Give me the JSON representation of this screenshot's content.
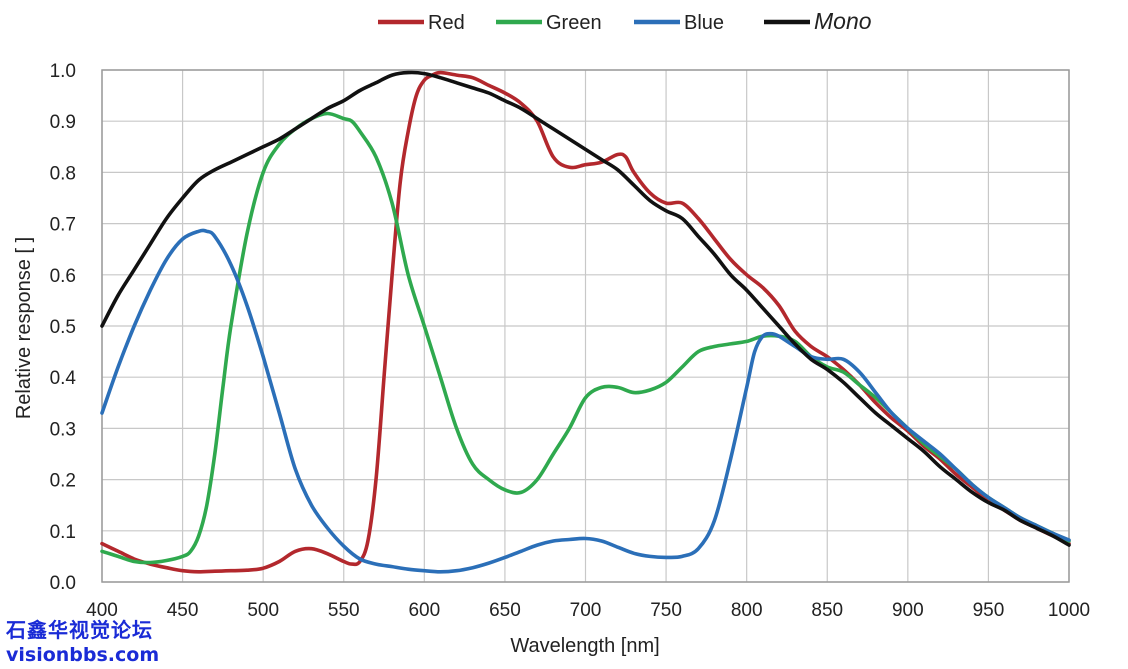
{
  "chart_data": {
    "type": "line",
    "xlabel": "Wavelength [nm]",
    "ylabel": "Relative response [ ]",
    "xlim": [
      400,
      1000
    ],
    "ylim": [
      0,
      1.0
    ],
    "xticks": [
      "400",
      "450",
      "500",
      "550",
      "600",
      "650",
      "700",
      "750",
      "800",
      "850",
      "900",
      "950",
      "1000"
    ],
    "yticks": [
      "0.0",
      "0.1",
      "0.2",
      "0.3",
      "0.4",
      "0.5",
      "0.6",
      "0.7",
      "0.8",
      "0.9",
      "1.0"
    ],
    "grid": true,
    "legend_position": "top",
    "series": [
      {
        "name": "Red",
        "color": "#b3282d",
        "italic": false,
        "x": [
          400,
          410,
          420,
          430,
          440,
          450,
          460,
          470,
          480,
          490,
          500,
          510,
          520,
          530,
          540,
          550,
          555,
          560,
          565,
          570,
          575,
          580,
          585,
          590,
          595,
          600,
          605,
          610,
          620,
          630,
          640,
          650,
          660,
          670,
          680,
          690,
          700,
          710,
          720,
          725,
          730,
          740,
          750,
          760,
          770,
          780,
          790,
          800,
          810,
          820,
          830,
          840,
          850,
          860,
          870,
          880,
          890,
          900,
          910,
          920,
          930,
          940,
          950,
          960,
          970,
          980,
          990,
          1000
        ],
        "y": [
          0.075,
          0.06,
          0.045,
          0.035,
          0.028,
          0.022,
          0.02,
          0.021,
          0.022,
          0.023,
          0.027,
          0.04,
          0.06,
          0.065,
          0.055,
          0.04,
          0.035,
          0.04,
          0.08,
          0.2,
          0.4,
          0.6,
          0.78,
          0.88,
          0.95,
          0.98,
          0.99,
          0.995,
          0.99,
          0.985,
          0.97,
          0.955,
          0.935,
          0.9,
          0.83,
          0.81,
          0.815,
          0.82,
          0.835,
          0.83,
          0.8,
          0.76,
          0.74,
          0.74,
          0.71,
          0.67,
          0.63,
          0.6,
          0.575,
          0.54,
          0.49,
          0.46,
          0.44,
          0.415,
          0.385,
          0.35,
          0.32,
          0.295,
          0.265,
          0.24,
          0.21,
          0.185,
          0.16,
          0.14,
          0.12,
          0.105,
          0.09,
          0.075
        ]
      },
      {
        "name": "Green",
        "color": "#2fa94e",
        "italic": false,
        "x": [
          400,
          410,
          420,
          430,
          440,
          450,
          455,
          460,
          465,
          470,
          475,
          480,
          490,
          500,
          510,
          520,
          530,
          540,
          550,
          555,
          560,
          570,
          580,
          590,
          600,
          610,
          620,
          630,
          640,
          650,
          660,
          670,
          680,
          690,
          700,
          710,
          720,
          730,
          740,
          750,
          760,
          770,
          780,
          790,
          800,
          810,
          820,
          830,
          840,
          850,
          860,
          870,
          880,
          890,
          900,
          910,
          920,
          930,
          940,
          950,
          960,
          970,
          980,
          990,
          1000
        ],
        "y": [
          0.06,
          0.05,
          0.04,
          0.038,
          0.042,
          0.05,
          0.06,
          0.09,
          0.15,
          0.25,
          0.38,
          0.5,
          0.68,
          0.8,
          0.855,
          0.885,
          0.905,
          0.915,
          0.905,
          0.9,
          0.88,
          0.83,
          0.74,
          0.6,
          0.5,
          0.4,
          0.3,
          0.23,
          0.2,
          0.18,
          0.175,
          0.2,
          0.25,
          0.3,
          0.36,
          0.38,
          0.38,
          0.37,
          0.375,
          0.39,
          0.42,
          0.45,
          0.46,
          0.465,
          0.47,
          0.48,
          0.48,
          0.47,
          0.44,
          0.42,
          0.41,
          0.385,
          0.36,
          0.33,
          0.3,
          0.27,
          0.245,
          0.22,
          0.19,
          0.165,
          0.145,
          0.125,
          0.11,
          0.095,
          0.08
        ]
      },
      {
        "name": "Blue",
        "color": "#2b6fb8",
        "italic": false,
        "x": [
          400,
          410,
          420,
          430,
          440,
          450,
          460,
          465,
          470,
          480,
          490,
          500,
          510,
          520,
          530,
          540,
          550,
          560,
          570,
          580,
          590,
          600,
          610,
          620,
          630,
          640,
          650,
          660,
          670,
          680,
          690,
          700,
          710,
          720,
          730,
          740,
          750,
          760,
          770,
          780,
          790,
          800,
          805,
          810,
          815,
          820,
          830,
          840,
          850,
          860,
          870,
          880,
          890,
          900,
          910,
          920,
          930,
          940,
          950,
          960,
          970,
          980,
          990,
          1000
        ],
        "y": [
          0.33,
          0.42,
          0.5,
          0.57,
          0.63,
          0.67,
          0.685,
          0.685,
          0.675,
          0.62,
          0.54,
          0.44,
          0.33,
          0.22,
          0.15,
          0.105,
          0.07,
          0.045,
          0.035,
          0.03,
          0.025,
          0.022,
          0.02,
          0.022,
          0.028,
          0.037,
          0.048,
          0.06,
          0.072,
          0.08,
          0.083,
          0.085,
          0.08,
          0.068,
          0.056,
          0.05,
          0.048,
          0.05,
          0.065,
          0.12,
          0.24,
          0.38,
          0.45,
          0.48,
          0.485,
          0.48,
          0.46,
          0.44,
          0.435,
          0.435,
          0.41,
          0.37,
          0.33,
          0.3,
          0.275,
          0.25,
          0.22,
          0.19,
          0.165,
          0.145,
          0.125,
          0.11,
          0.095,
          0.082
        ]
      },
      {
        "name": "Mono",
        "color": "#111111",
        "italic": true,
        "x": [
          400,
          410,
          420,
          430,
          440,
          450,
          460,
          470,
          480,
          490,
          500,
          510,
          520,
          530,
          540,
          550,
          560,
          570,
          580,
          590,
          600,
          610,
          620,
          630,
          640,
          650,
          660,
          670,
          680,
          690,
          700,
          710,
          720,
          730,
          740,
          750,
          760,
          770,
          780,
          790,
          800,
          810,
          820,
          830,
          840,
          850,
          860,
          870,
          880,
          890,
          900,
          910,
          920,
          930,
          940,
          950,
          960,
          970,
          980,
          990,
          1000
        ],
        "y": [
          0.5,
          0.56,
          0.61,
          0.66,
          0.71,
          0.75,
          0.785,
          0.805,
          0.82,
          0.835,
          0.85,
          0.865,
          0.885,
          0.905,
          0.925,
          0.94,
          0.96,
          0.975,
          0.99,
          0.995,
          0.993,
          0.985,
          0.975,
          0.965,
          0.955,
          0.94,
          0.925,
          0.905,
          0.885,
          0.865,
          0.845,
          0.825,
          0.805,
          0.775,
          0.745,
          0.725,
          0.71,
          0.675,
          0.64,
          0.6,
          0.57,
          0.535,
          0.5,
          0.465,
          0.435,
          0.415,
          0.39,
          0.36,
          0.33,
          0.305,
          0.28,
          0.255,
          0.225,
          0.2,
          0.175,
          0.155,
          0.14,
          0.12,
          0.105,
          0.09,
          0.072
        ]
      }
    ]
  },
  "watermark": {
    "line1": "石鑫华视觉论坛",
    "line2": "visionbbs.com"
  }
}
